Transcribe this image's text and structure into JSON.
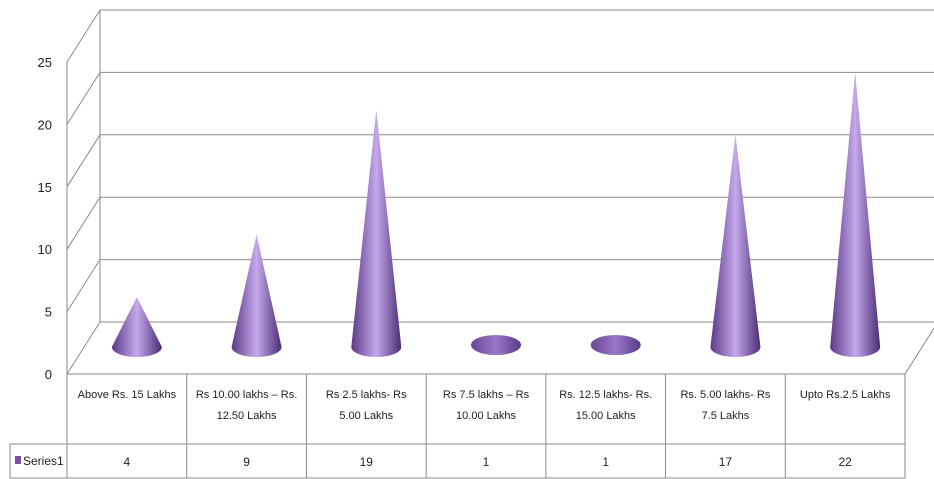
{
  "chart_data": {
    "type": "bar",
    "style": "3d-cone",
    "categories": [
      "Above Rs. 15 Lakhs",
      "Rs 10.00 lakhs – Rs. 12.50 Lakhs",
      "Rs 2.5 lakhs- Rs 5.00 Lakhs",
      "Rs 7.5 lakhs – Rs 10.00 Lakhs",
      "Rs. 12.5 lakhs- Rs. 15.00 Lakhs",
      "Rs. 5.00 lakhs- Rs 7.5 Lakhs",
      "Upto Rs.2.5 Lakhs"
    ],
    "category_lines": [
      [
        "Above Rs. 15 Lakhs"
      ],
      [
        "Rs 10.00 lakhs – Rs.",
        "12.50 Lakhs"
      ],
      [
        "Rs 2.5 lakhs- Rs",
        "5.00 Lakhs"
      ],
      [
        "Rs 7.5 lakhs – Rs",
        "10.00 Lakhs"
      ],
      [
        "Rs. 12.5 lakhs- Rs.",
        "15.00 Lakhs"
      ],
      [
        "Rs. 5.00 lakhs- Rs",
        "7.5 Lakhs"
      ],
      [
        "Upto Rs.2.5 Lakhs"
      ]
    ],
    "series": [
      {
        "name": "Series1",
        "values": [
          4,
          9,
          19,
          1,
          1,
          17,
          22
        ],
        "color": "#7b4fa8"
      }
    ],
    "value_labels": [
      "4",
      "9",
      "19",
      "1",
      "1",
      "17",
      "22"
    ],
    "y_ticks": [
      "0",
      "5",
      "10",
      "15",
      "20",
      "25"
    ],
    "ylim": [
      0,
      25
    ],
    "grid": true,
    "legend": "data-table",
    "title": "",
    "xlabel": "",
    "ylabel": ""
  }
}
